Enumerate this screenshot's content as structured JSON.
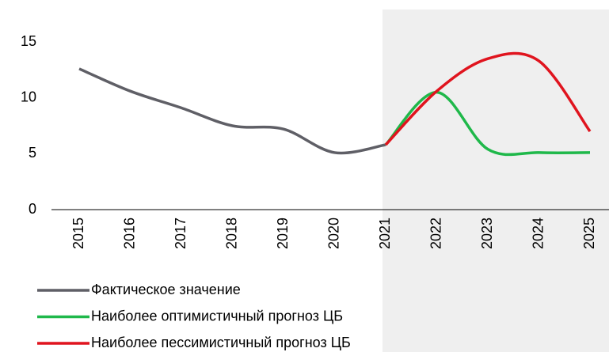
{
  "chart_data": {
    "type": "line",
    "categories": [
      "2015",
      "2016",
      "2017",
      "2018",
      "2019",
      "2020",
      "2021",
      "2022",
      "2023",
      "2024",
      "2025"
    ],
    "series": [
      {
        "name": "Фактическое значение",
        "color": "#5f5f66",
        "values": [
          12.6,
          10.6,
          9.1,
          7.5,
          7.2,
          5.1,
          5.8,
          null,
          null,
          null,
          null
        ]
      },
      {
        "name": "Наиболее оптимистичный прогноз ЦБ",
        "color": "#1fb84a",
        "values": [
          null,
          null,
          null,
          null,
          null,
          null,
          5.8,
          10.5,
          5.4,
          5.1,
          5.1
        ]
      },
      {
        "name": "Наиболее пессимистичный прогноз ЦБ",
        "color": "#e0141e",
        "values": [
          null,
          null,
          null,
          null,
          null,
          null,
          5.8,
          10.6,
          13.5,
          13.3,
          7.0
        ]
      }
    ],
    "ylim": [
      0,
      15
    ],
    "yticks": [
      0,
      5,
      10,
      15
    ],
    "legend": "bottom-left"
  }
}
